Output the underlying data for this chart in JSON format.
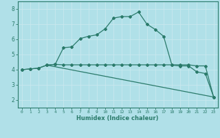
{
  "xlabel": "Humidex (Indice chaleur)",
  "bg_color": "#b0e0e8",
  "grid_color": "#d8f0f0",
  "line_color": "#2a7a6a",
  "xlim": [
    -0.5,
    23.5
  ],
  "ylim": [
    1.5,
    8.5
  ],
  "xticks": [
    0,
    1,
    2,
    3,
    4,
    5,
    6,
    7,
    8,
    9,
    10,
    11,
    12,
    13,
    14,
    15,
    16,
    17,
    18,
    19,
    20,
    21,
    22,
    23
  ],
  "yticks": [
    2,
    3,
    4,
    5,
    6,
    7,
    8
  ],
  "curve1_x": [
    0,
    1,
    2,
    3,
    4,
    5,
    6,
    7,
    8,
    9,
    10,
    11,
    12,
    13,
    14,
    15,
    16,
    17,
    18,
    19,
    20,
    21,
    22,
    23
  ],
  "curve1_y": [
    4.0,
    4.05,
    4.1,
    4.3,
    4.35,
    5.45,
    5.5,
    6.05,
    6.2,
    6.3,
    6.7,
    7.4,
    7.5,
    7.5,
    7.8,
    7.0,
    6.65,
    6.2,
    4.3,
    4.25,
    4.25,
    3.85,
    3.75,
    2.2
  ],
  "curve2_x": [
    0,
    1,
    2,
    3,
    4,
    5,
    6,
    7,
    8,
    9,
    10,
    11,
    12,
    13,
    14,
    15,
    16,
    17,
    18,
    19,
    20,
    21,
    22,
    23
  ],
  "curve2_y": [
    4.0,
    4.05,
    4.1,
    4.3,
    4.35,
    4.32,
    4.32,
    4.32,
    4.32,
    4.32,
    4.32,
    4.32,
    4.32,
    4.32,
    4.32,
    4.32,
    4.32,
    4.32,
    4.32,
    4.32,
    4.32,
    4.25,
    4.25,
    2.2
  ],
  "curve3_x": [
    3,
    23
  ],
  "curve3_y": [
    4.3,
    2.2
  ],
  "markersize": 2.0,
  "linewidth": 0.9
}
